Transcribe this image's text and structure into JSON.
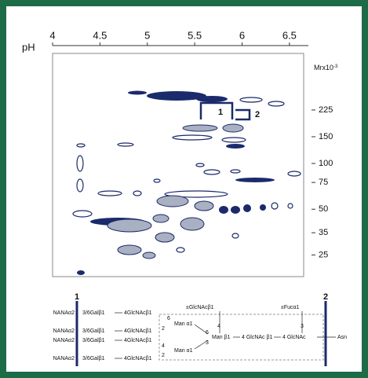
{
  "chart_data": {
    "type": "gel",
    "x_label": "pH",
    "xlim": [
      4,
      6.65
    ],
    "xticks": [
      4,
      4.5,
      5,
      5.5,
      6,
      6.5
    ],
    "y_label": "Mrx10",
    "y_label_exponent": "-3",
    "log": true,
    "ylim": [
      18,
      530
    ],
    "yticks": [
      225,
      150,
      100,
      75,
      50,
      35,
      25
    ],
    "annotations": [
      "1",
      "2"
    ]
  },
  "glycan": {
    "label_1": "1",
    "label_2": "2",
    "texts": [
      "NANAα2",
      "3/6Galβ1",
      "4GlcNAcβ1",
      "NANAα2",
      "3/6Galβ1",
      "4GlcNAcβ1",
      "NANAα2",
      "3/6Galβ1",
      "4GlcNAcβ1",
      "NANAα2",
      "3/6Galβ1",
      "4GlcNAcβ1",
      "±GlcNAcβ1",
      "±Fucα1",
      "6",
      "Man α1",
      "2",
      "4",
      "6",
      "Man β1",
      "3",
      "4 GlcNAc β1",
      "4 GlcNAc",
      "3",
      "4",
      "Man α1",
      "2",
      "Asn"
    ]
  }
}
